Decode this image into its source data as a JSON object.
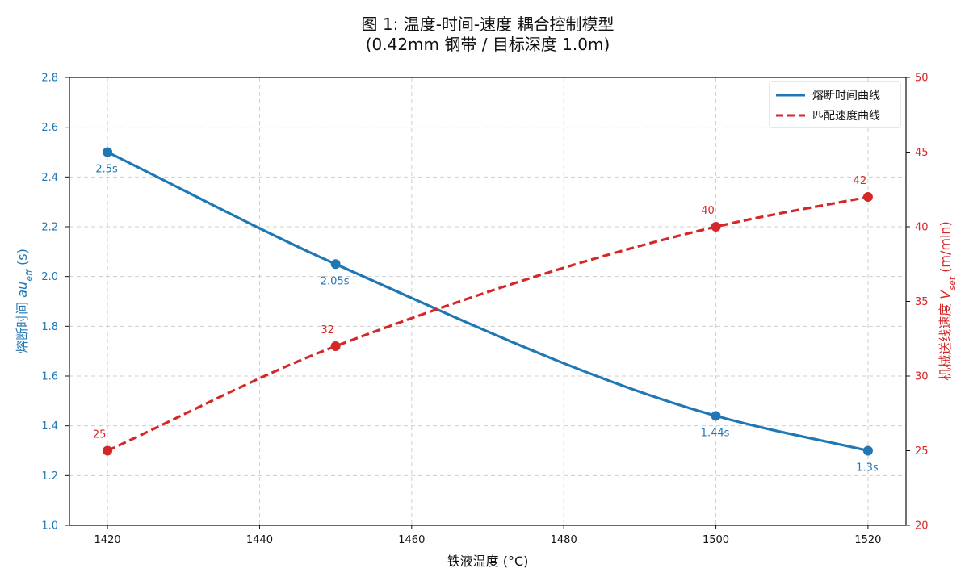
{
  "colors": {
    "temp_series": "#1f77b4",
    "speed_series": "#d62728",
    "grid": "#cfcfcf",
    "axis": "#111111"
  },
  "chart_data": {
    "type": "line",
    "title_line1": "图 1: 温度-时间-速度 耦合控制模型",
    "title_line2": "(0.42mm 钢带 / 目标深度 1.0m)",
    "xlabel": "铁液温度 (°C)",
    "ylabel_left": "熔断时间 au_eff (s)",
    "ylabel_right": "机械送线速度 V_set (m/min)",
    "xlim": [
      1415,
      1525
    ],
    "xticks": [
      1420,
      1440,
      1460,
      1480,
      1500,
      1520
    ],
    "ylim_left": [
      1.0,
      2.8
    ],
    "yticks_left": [
      "1.0",
      "1.2",
      "1.4",
      "1.6",
      "1.8",
      "2.0",
      "2.2",
      "2.4",
      "2.6",
      "2.8"
    ],
    "ylim_right": [
      20,
      50
    ],
    "yticks_right": [
      "20",
      "25",
      "30",
      "35",
      "40",
      "45",
      "50"
    ],
    "grid": true,
    "legend_position": "top-right",
    "series": [
      {
        "name": "熔断时间曲线",
        "axis": "left",
        "style": "solid",
        "x": [
          1420,
          1450,
          1500,
          1520
        ],
        "y": [
          2.5,
          2.05,
          1.44,
          1.3
        ],
        "labels": [
          "2.5s",
          "2.05s",
          "1.44s",
          "1.3s"
        ]
      },
      {
        "name": "匹配速度曲线",
        "axis": "right",
        "style": "dashed",
        "x": [
          1420,
          1450,
          1500,
          1520
        ],
        "y": [
          25,
          32,
          40,
          42
        ],
        "labels": [
          "25",
          "32",
          "40",
          "42"
        ]
      }
    ]
  }
}
